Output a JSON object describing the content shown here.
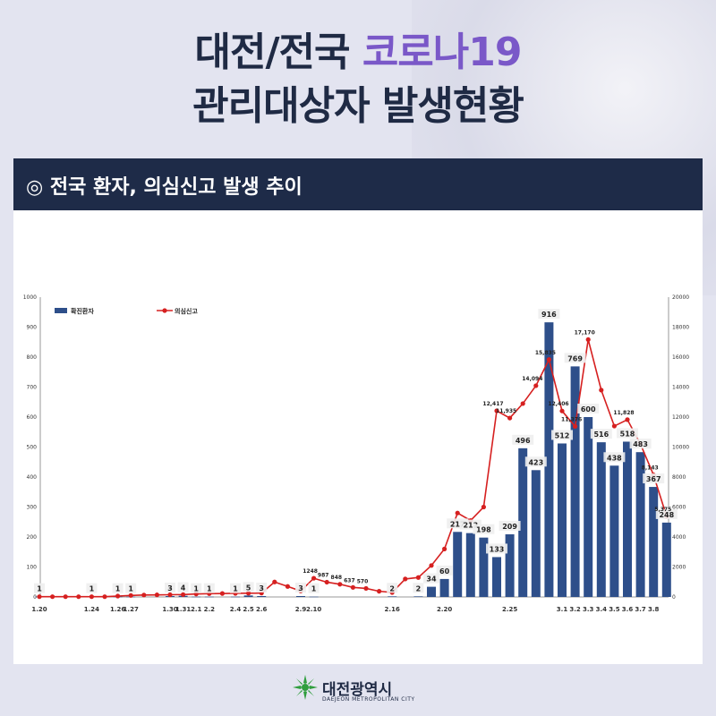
{
  "title_line1_part1": "대전/전국 ",
  "title_line1_accent": "코로나19",
  "title_line2": "관리대상자 발생현황",
  "section_title": "◎ 전국 환자, 의심신고 발생 추이",
  "logo": {
    "name": "대전광역시",
    "english": "DAEJEON METROPOLITAN CITY",
    "icon": "daejeon-emblem-icon"
  },
  "colors": {
    "bar": "#2e4f8a",
    "line": "#d62020",
    "accent": "#7a58c8",
    "navy": "#1e2b48"
  },
  "chart_data": {
    "type": "bar+line",
    "legend": [
      "확진환자",
      "의심신고"
    ],
    "legend_position": "top-left",
    "ylim_left": [
      0,
      1000
    ],
    "ylim_right": [
      0,
      20000
    ],
    "left_ticks": [
      0,
      100,
      200,
      300,
      400,
      500,
      600,
      700,
      800,
      900,
      1000
    ],
    "right_ticks": [
      0,
      2000,
      4000,
      6000,
      8000,
      10000,
      12000,
      14000,
      16000,
      18000,
      20000
    ],
    "left_tick_labels": [
      "0",
      "100",
      "200",
      "300",
      "400",
      "500",
      "600",
      "700",
      "800",
      "900",
      "1000"
    ],
    "right_tick_labels": [
      "0",
      "2000",
      "4000",
      "6000",
      "8000",
      "10000",
      "12000",
      "14000",
      "16000",
      "18000",
      "20000"
    ],
    "x_ticks": [
      {
        "i": 0,
        "label": "1.20"
      },
      {
        "i": 4,
        "label": "1.24"
      },
      {
        "i": 6,
        "label": "1.26"
      },
      {
        "i": 7,
        "label": "1.27"
      },
      {
        "i": 10,
        "label": "1.30"
      },
      {
        "i": 11,
        "label": "1.31"
      },
      {
        "i": 12,
        "label": "2.1"
      },
      {
        "i": 13,
        "label": "2.2"
      },
      {
        "i": 15,
        "label": "2.4"
      },
      {
        "i": 16,
        "label": "2.5"
      },
      {
        "i": 17,
        "label": "2.6"
      },
      {
        "i": 20,
        "label": "2.9"
      },
      {
        "i": 21,
        "label": "2.10"
      },
      {
        "i": 27,
        "label": "2.16"
      },
      {
        "i": 31,
        "label": "2.20"
      },
      {
        "i": 36,
        "label": "2.25"
      },
      {
        "i": 40,
        "label": "3.1"
      },
      {
        "i": 41,
        "label": "3.2"
      },
      {
        "i": 42,
        "label": "3.3"
      },
      {
        "i": 43,
        "label": "3.4"
      },
      {
        "i": 44,
        "label": "3.5"
      },
      {
        "i": 45,
        "label": "3.6"
      },
      {
        "i": 46,
        "label": "3.7"
      },
      {
        "i": 47,
        "label": "3.8"
      }
    ],
    "confirmed": [
      1,
      0,
      0,
      0,
      1,
      0,
      1,
      1,
      0,
      0,
      3,
      4,
      1,
      1,
      0,
      1,
      5,
      3,
      0,
      0,
      3,
      1,
      0,
      0,
      0,
      0,
      0,
      2,
      0,
      2,
      34,
      60,
      217,
      213,
      198,
      133,
      209,
      496,
      423,
      916,
      512,
      769,
      600,
      516,
      438,
      518,
      483,
      367,
      248
    ],
    "confirmed_labels": [
      {
        "i": 0,
        "text": "1"
      },
      {
        "i": 4,
        "text": "1"
      },
      {
        "i": 6,
        "text": "1"
      },
      {
        "i": 7,
        "text": "1"
      },
      {
        "i": 10,
        "text": "3"
      },
      {
        "i": 11,
        "text": "4"
      },
      {
        "i": 12,
        "text": "1"
      },
      {
        "i": 13,
        "text": "1"
      },
      {
        "i": 15,
        "text": "1"
      },
      {
        "i": 16,
        "text": "5"
      },
      {
        "i": 17,
        "text": "3"
      },
      {
        "i": 20,
        "text": "3"
      },
      {
        "i": 21,
        "text": "1"
      },
      {
        "i": 27,
        "text": "2"
      },
      {
        "i": 29,
        "text": "2"
      },
      {
        "i": 30,
        "text": "34"
      },
      {
        "i": 31,
        "text": "60"
      },
      {
        "i": 32,
        "text": "217"
      },
      {
        "i": 33,
        "text": "213"
      },
      {
        "i": 34,
        "text": "198"
      },
      {
        "i": 35,
        "text": "133"
      },
      {
        "i": 36,
        "text": "209"
      },
      {
        "i": 37,
        "text": "496"
      },
      {
        "i": 38,
        "text": "423"
      },
      {
        "i": 39,
        "text": "916"
      },
      {
        "i": 40,
        "text": "512"
      },
      {
        "i": 41,
        "text": "769"
      },
      {
        "i": 42,
        "text": "600"
      },
      {
        "i": 43,
        "text": "516"
      },
      {
        "i": 44,
        "text": "438"
      },
      {
        "i": 45,
        "text": "518"
      },
      {
        "i": 46,
        "text": "483"
      },
      {
        "i": 47,
        "text": "367"
      },
      {
        "i": 48,
        "text": "248"
      }
    ],
    "suspected": [
      20,
      20,
      20,
      20,
      20,
      20,
      60,
      100,
      130,
      140,
      150,
      160,
      200,
      220,
      230,
      240,
      250,
      260,
      1000,
      700,
      400,
      1248,
      987,
      848,
      637,
      570,
      380,
      300,
      1200,
      1300,
      2100,
      3200,
      5600,
      5100,
      6000,
      12417,
      11935,
      12900,
      14094,
      15835,
      12406,
      11376,
      17170,
      13800,
      11400,
      11828,
      10200,
      8143,
      5375
    ],
    "suspected_labels": [
      {
        "i": 21,
        "text": "1248"
      },
      {
        "i": 22,
        "text": "987"
      },
      {
        "i": 23,
        "text": "848"
      },
      {
        "i": 24,
        "text": "637"
      },
      {
        "i": 25,
        "text": "570"
      },
      {
        "i": 35,
        "text": "12,417"
      },
      {
        "i": 36,
        "text": "11,935"
      },
      {
        "i": 38,
        "text": "14,094"
      },
      {
        "i": 39,
        "text": "15,835"
      },
      {
        "i": 40,
        "text": "12,406"
      },
      {
        "i": 41,
        "text": "11,376"
      },
      {
        "i": 42,
        "text": "17,170"
      },
      {
        "i": 45,
        "text": "11,828"
      },
      {
        "i": 47,
        "text": "8,143"
      },
      {
        "i": 48,
        "text": "5,375"
      }
    ]
  }
}
